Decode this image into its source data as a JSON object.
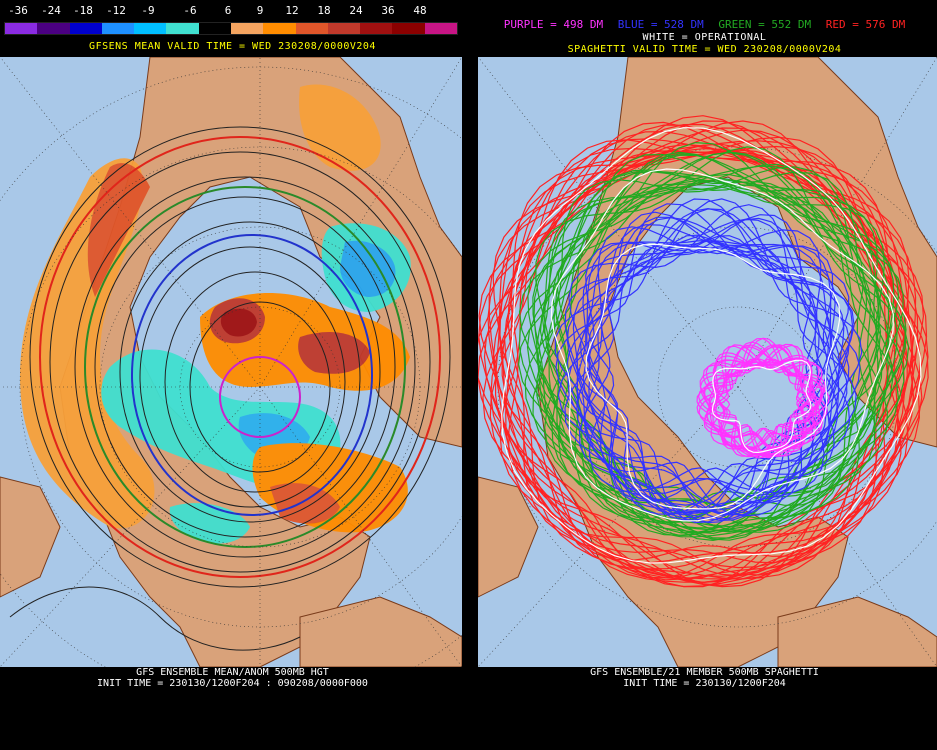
{
  "left": {
    "scale_labels": [
      "-36",
      "-24",
      "-18",
      "-12",
      "-9",
      "-6",
      "6",
      "9",
      "12",
      "18",
      "24",
      "36",
      "48"
    ],
    "scale_colors": [
      "#8a2be2",
      "#4b0082",
      "#0000cd",
      "#1e90ff",
      "#00bfff",
      "#40e0d0",
      "#000000",
      "#f4a460",
      "#ff8c00",
      "#e0562a",
      "#c0392b",
      "#a01010",
      "#8b0000",
      "#c71585"
    ],
    "header": "GFSENS MEAN VALID TIME = WED 230208/0000V204",
    "footer_line1": "GFS ENSEMBLE MEAN/ANOM 500MB HGT",
    "footer_line2": "INIT TIME = 230130/1200F204 : 090208/0000F000"
  },
  "right": {
    "legend": [
      {
        "text": "PURPLE = 498 DM",
        "color": "#ff33ff"
      },
      {
        "text": "BLUE = 528 DM",
        "color": "#3333ff"
      },
      {
        "text": "GREEN = 552 DM",
        "color": "#22aa22"
      },
      {
        "text": "RED = 576 DM",
        "color": "#ff2222"
      }
    ],
    "legend_white": "WHITE = OPERATIONAL",
    "header": "SPAGHETTI VALID TIME = WED 230208/0000V204",
    "footer_line1": "GFS ENSEMBLE/21 MEMBER 500MB SPAGHETTI",
    "footer_line2": "INIT TIME = 230130/1200F204"
  },
  "colors": {
    "ocean": "#a9c8e8",
    "land": "#d9a27a",
    "header_text": "#ffff00",
    "text": "#ffffff"
  }
}
